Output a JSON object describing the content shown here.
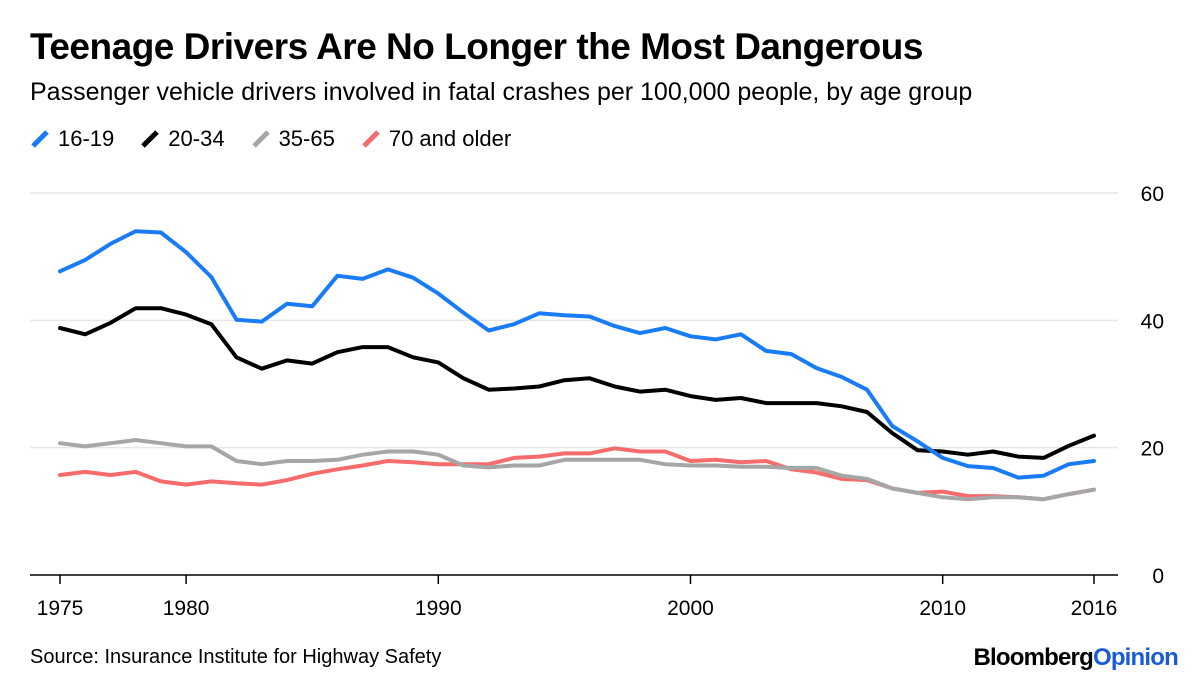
{
  "title": "Teenage Drivers Are No Longer the Most Dangerous",
  "subtitle": "Passenger vehicle drivers involved in fatal crashes per 100,000 people, by age group",
  "source": "Source: Insurance Institute for Highway Safety",
  "brand": {
    "part1": "Bloomberg",
    "part2": "Opinion"
  },
  "colors": {
    "brand_accent": "#1a5bd6"
  },
  "chart_data": {
    "type": "line",
    "title": "Teenage Drivers Are No Longer the Most Dangerous",
    "subtitle": "Passenger vehicle drivers involved in fatal crashes per 100,000 people, by age group",
    "xlabel": "",
    "ylabel": "",
    "xlim": [
      1975,
      2016
    ],
    "ylim": [
      0,
      60
    ],
    "x_ticks": [
      "1975",
      "1980",
      "1990",
      "2000",
      "2010",
      "2016"
    ],
    "y_ticks": [
      "0",
      "20",
      "40",
      "60"
    ],
    "y_axis_side": "right",
    "grid": true,
    "legend_position": "top-left",
    "x": [
      1975,
      1976,
      1977,
      1978,
      1979,
      1980,
      1981,
      1982,
      1983,
      1984,
      1985,
      1986,
      1987,
      1988,
      1989,
      1990,
      1991,
      1992,
      1993,
      1994,
      1995,
      1996,
      1997,
      1998,
      1999,
      2000,
      2001,
      2002,
      2003,
      2004,
      2005,
      2006,
      2007,
      2008,
      2009,
      2010,
      2011,
      2012,
      2013,
      2014,
      2015,
      2016
    ],
    "series": [
      {
        "name": "16-19",
        "color": "#1a7cf5",
        "values": [
          47.7,
          49.5,
          52.0,
          54.0,
          53.8,
          50.7,
          46.8,
          40.1,
          39.8,
          42.6,
          42.2,
          47.0,
          46.5,
          48.0,
          46.7,
          44.2,
          41.2,
          38.4,
          39.4,
          41.1,
          40.8,
          40.6,
          39.1,
          38.0,
          38.8,
          37.5,
          37.0,
          37.8,
          35.2,
          34.7,
          32.5,
          31.1,
          29.1,
          23.4,
          21.0,
          18.4,
          17.1,
          16.8,
          15.3,
          15.6,
          17.4,
          17.9
        ]
      },
      {
        "name": "20-34",
        "color": "#000000",
        "values": [
          38.8,
          37.8,
          39.6,
          41.9,
          41.9,
          40.9,
          39.4,
          34.2,
          32.4,
          33.7,
          33.2,
          35.0,
          35.8,
          35.8,
          34.2,
          33.4,
          30.9,
          29.1,
          29.3,
          29.6,
          30.6,
          30.9,
          29.6,
          28.8,
          29.1,
          28.1,
          27.5,
          27.8,
          27.0,
          27.0,
          27.0,
          26.5,
          25.6,
          22.3,
          19.6,
          19.4,
          18.9,
          19.4,
          18.6,
          18.4,
          20.3,
          21.9
        ]
      },
      {
        "name": "35-65",
        "color": "#a6a6a6",
        "values": [
          20.7,
          20.2,
          20.7,
          21.2,
          20.7,
          20.2,
          20.2,
          17.9,
          17.4,
          17.9,
          17.9,
          18.1,
          18.9,
          19.4,
          19.4,
          18.9,
          17.2,
          16.9,
          17.2,
          17.2,
          18.1,
          18.1,
          18.1,
          18.1,
          17.4,
          17.2,
          17.2,
          17.0,
          17.0,
          16.8,
          16.8,
          15.6,
          15.1,
          13.6,
          12.9,
          12.2,
          11.9,
          12.2,
          12.2,
          11.9,
          12.7,
          13.4
        ]
      },
      {
        "name": "70 and older",
        "color": "#f66c6c",
        "values": [
          15.7,
          16.2,
          15.7,
          16.2,
          14.7,
          14.2,
          14.7,
          14.4,
          14.2,
          14.9,
          15.9,
          16.6,
          17.2,
          17.9,
          17.7,
          17.4,
          17.4,
          17.4,
          18.4,
          18.6,
          19.1,
          19.1,
          19.9,
          19.4,
          19.4,
          17.9,
          18.1,
          17.7,
          17.9,
          16.6,
          16.1,
          15.1,
          14.9,
          13.6,
          12.9,
          13.1,
          12.4,
          12.4,
          12.2,
          11.9,
          12.7,
          13.4
        ]
      }
    ]
  }
}
